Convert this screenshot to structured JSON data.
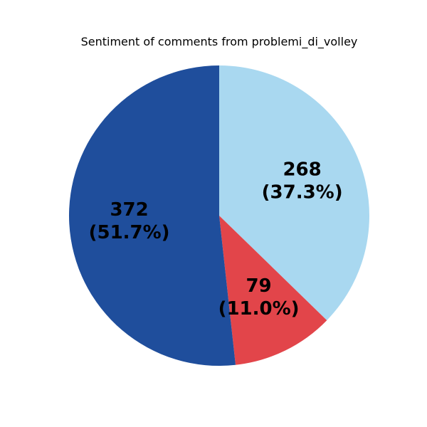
{
  "chart_data": {
    "type": "pie",
    "title": "Sentiment of comments from problemi_di_volley",
    "slices": [
      {
        "value": 268,
        "percent_label": "(37.3%)",
        "value_label": "268",
        "color": "#a9d8f0"
      },
      {
        "value": 79,
        "percent_label": "(11.0%)",
        "value_label": "79",
        "color": "#e2454a"
      },
      {
        "value": 372,
        "percent_label": "(51.7%)",
        "value_label": "372",
        "color": "#1f4e9c"
      }
    ],
    "start_angle_deg": 90,
    "direction": "clockwise",
    "legend": "none"
  }
}
